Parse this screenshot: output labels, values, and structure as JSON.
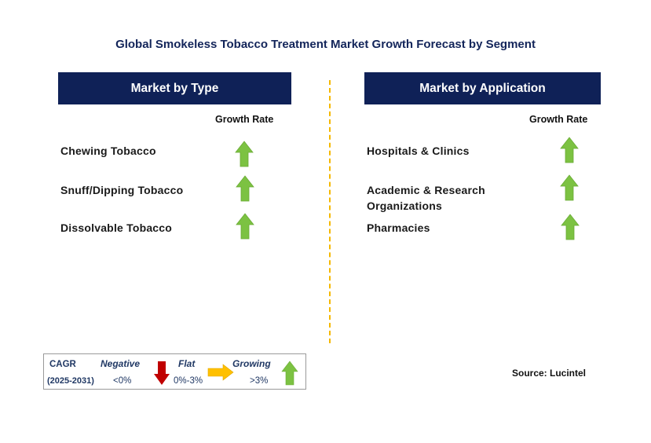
{
  "title": "Global Smokeless Tobacco Treatment Market Growth Forecast by Segment",
  "left_panel": {
    "header": "Market by Type",
    "growth_label": "Growth Rate",
    "items": [
      {
        "label_lines": [
          "Chewing Tobacco"
        ],
        "trend": "growing"
      },
      {
        "label_lines": [
          "Snuff/Dipping Tobacco"
        ],
        "trend": "growing"
      },
      {
        "label_lines": [
          "Dissolvable Tobacco"
        ],
        "trend": "growing"
      }
    ]
  },
  "right_panel": {
    "header": "Market by Application",
    "growth_label": "Growth Rate",
    "items": [
      {
        "label_lines": [
          "Hospitals & Clinics"
        ],
        "trend": "growing"
      },
      {
        "label_lines": [
          "Academic & Research",
          "Organizations"
        ],
        "trend": "growing"
      },
      {
        "label_lines": [
          "Pharmacies"
        ],
        "trend": "growing"
      }
    ]
  },
  "legend": {
    "cagr": "CAGR",
    "years": "(2025-2031)",
    "negative_label": "Negative",
    "negative_range": "<0%",
    "flat_label": "Flat",
    "flat_range": "0%-3%",
    "growing_label": "Growing",
    "growing_range": ">3%"
  },
  "source": "Source: Lucintel",
  "colors": {
    "header_bg": "#0f2157",
    "growing_arrow": "#7cc242",
    "negative_arrow": "#c00000",
    "flat_arrow": "#ffc000",
    "divider": "#f5b800"
  },
  "icons": [
    "up-arrow-icon",
    "down-arrow-icon",
    "right-arrow-icon"
  ]
}
